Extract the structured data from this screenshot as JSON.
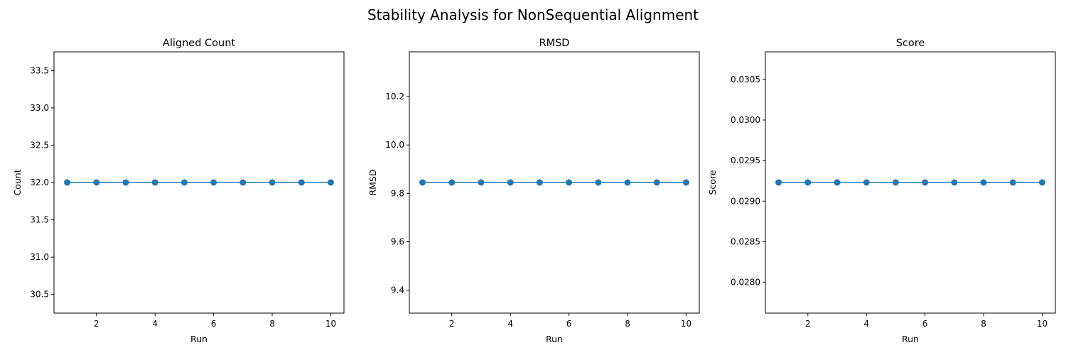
{
  "figure": {
    "suptitle": "Stability Analysis for NonSequential Alignment"
  },
  "chart_data": [
    {
      "type": "line",
      "title": "Aligned Count",
      "xlabel": "Run",
      "ylabel": "Count",
      "x": [
        1,
        2,
        3,
        4,
        5,
        6,
        7,
        8,
        9,
        10
      ],
      "series": [
        {
          "values": [
            32,
            32,
            32,
            32,
            32,
            32,
            32,
            32,
            32,
            32
          ]
        }
      ],
      "xlim": [
        0.55,
        10.45
      ],
      "ylim": [
        30.25,
        33.75
      ],
      "xticks": [
        2,
        4,
        6,
        8,
        10
      ],
      "xtick_labels": [
        "2",
        "4",
        "6",
        "8",
        "10"
      ],
      "yticks": [
        30.5,
        31.0,
        31.5,
        32.0,
        32.5,
        33.0,
        33.5
      ],
      "ytick_labels": [
        "30.5",
        "31.0",
        "31.5",
        "32.0",
        "32.5",
        "33.0",
        "33.5"
      ],
      "color": "#1f77b4",
      "marker": "circle",
      "grid": false
    },
    {
      "type": "line",
      "title": "RMSD",
      "xlabel": "Run",
      "ylabel": "RMSD",
      "x": [
        1,
        2,
        3,
        4,
        5,
        6,
        7,
        8,
        9,
        10
      ],
      "series": [
        {
          "values": [
            9.845,
            9.845,
            9.845,
            9.845,
            9.845,
            9.845,
            9.845,
            9.845,
            9.845,
            9.845
          ]
        }
      ],
      "xlim": [
        0.55,
        10.45
      ],
      "ylim": [
        9.305,
        10.385
      ],
      "xticks": [
        2,
        4,
        6,
        8,
        10
      ],
      "xtick_labels": [
        "2",
        "4",
        "6",
        "8",
        "10"
      ],
      "yticks": [
        9.4,
        9.6,
        9.8,
        10.0,
        10.2
      ],
      "ytick_labels": [
        "9.4",
        "9.6",
        "9.8",
        "10.0",
        "10.2"
      ],
      "color": "#1f77b4",
      "marker": "circle",
      "grid": false
    },
    {
      "type": "line",
      "title": "Score",
      "xlabel": "Run",
      "ylabel": "Score",
      "x": [
        1,
        2,
        3,
        4,
        5,
        6,
        7,
        8,
        9,
        10
      ],
      "series": [
        {
          "values": [
            0.02923,
            0.02923,
            0.02923,
            0.02923,
            0.02923,
            0.02923,
            0.02923,
            0.02923,
            0.02923,
            0.02923
          ]
        }
      ],
      "xlim": [
        0.55,
        10.45
      ],
      "ylim": [
        0.02762,
        0.03084
      ],
      "xticks": [
        2,
        4,
        6,
        8,
        10
      ],
      "xtick_labels": [
        "2",
        "4",
        "6",
        "8",
        "10"
      ],
      "yticks": [
        0.028,
        0.0285,
        0.029,
        0.0295,
        0.03,
        0.0305
      ],
      "ytick_labels": [
        "0.0280",
        "0.0285",
        "0.0290",
        "0.0295",
        "0.0300",
        "0.0305"
      ],
      "color": "#1f77b4",
      "marker": "circle",
      "grid": false
    }
  ]
}
